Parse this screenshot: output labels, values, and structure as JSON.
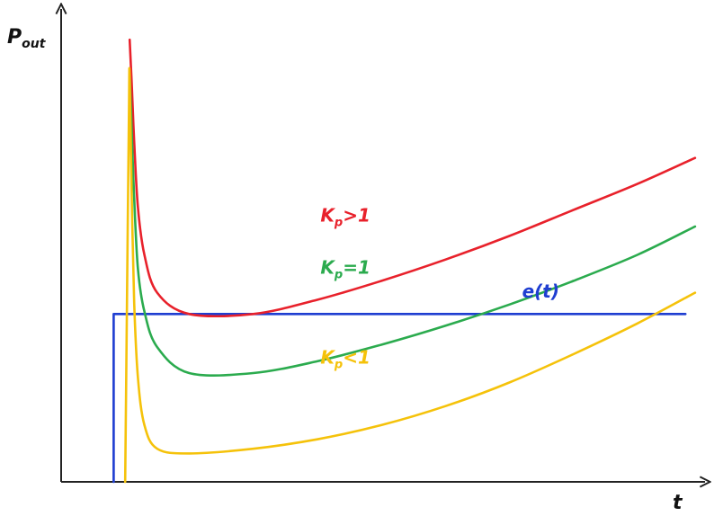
{
  "chart_data": {
    "type": "line",
    "title": "",
    "xlabel": "t",
    "ylabel": {
      "main": "P",
      "sub": "out"
    },
    "xlim": [
      0,
      100
    ],
    "ylim": [
      0,
      100
    ],
    "grid": false,
    "legend": "none",
    "series": [
      {
        "label": {
          "main": "K",
          "sub": "p",
          "rest": ">1"
        },
        "color": "#e8212b",
        "x": [
          10.7,
          11.0,
          11.4,
          12.0,
          13.0,
          15.0,
          20.0,
          30.0,
          40.0,
          50.0,
          60.0,
          70.0,
          80.0,
          90.0,
          99.0
        ],
        "y": [
          93.5,
          85.0,
          72.0,
          58.0,
          48.0,
          40.0,
          35.5,
          35.5,
          38.5,
          42.5,
          47.0,
          52.0,
          57.5,
          63.0,
          68.5
        ]
      },
      {
        "label": {
          "main": "K",
          "sub": "p",
          "rest": "=1"
        },
        "color": "#2bab4e",
        "x": [
          10.7,
          11.0,
          11.4,
          12.0,
          13.0,
          15.0,
          20.0,
          30.0,
          40.0,
          50.0,
          60.0,
          70.0,
          80.0,
          90.0,
          99.0
        ],
        "y": [
          86.0,
          75.0,
          60.0,
          45.0,
          36.0,
          28.5,
          23.0,
          23.0,
          25.5,
          29.0,
          33.0,
          37.5,
          42.5,
          48.0,
          54.0
        ]
      },
      {
        "label": {
          "main": "K",
          "sub": "p",
          "rest": "<1"
        },
        "color": "#f5c20a",
        "x": [
          10.0,
          10.3,
          10.6,
          10.7,
          11.0,
          11.4,
          12.0,
          13.0,
          15.0,
          20.0,
          30.0,
          40.0,
          50.0,
          60.0,
          70.0,
          80.0,
          90.0,
          99.0
        ],
        "y": [
          0.0,
          40.0,
          80.0,
          86.0,
          62.0,
          38.0,
          22.0,
          12.0,
          7.0,
          6.0,
          7.0,
          9.0,
          12.0,
          16.0,
          21.0,
          27.0,
          33.5,
          40.0
        ]
      },
      {
        "label": {
          "main": "e(t)",
          "sub": "",
          "rest": ""
        },
        "color": "#1f3ed1",
        "x": [
          8.2,
          8.2,
          8.9,
          97.5
        ],
        "y": [
          0.0,
          35.5,
          35.5,
          35.5
        ]
      }
    ],
    "annotations": [
      {
        "series": 0,
        "x": 40.5,
        "y": 55.0
      },
      {
        "series": 1,
        "x": 40.5,
        "y": 44.0
      },
      {
        "series": 2,
        "x": 40.5,
        "y": 25.0
      },
      {
        "series": 3,
        "x": 72.0,
        "y": 39.0
      }
    ]
  }
}
